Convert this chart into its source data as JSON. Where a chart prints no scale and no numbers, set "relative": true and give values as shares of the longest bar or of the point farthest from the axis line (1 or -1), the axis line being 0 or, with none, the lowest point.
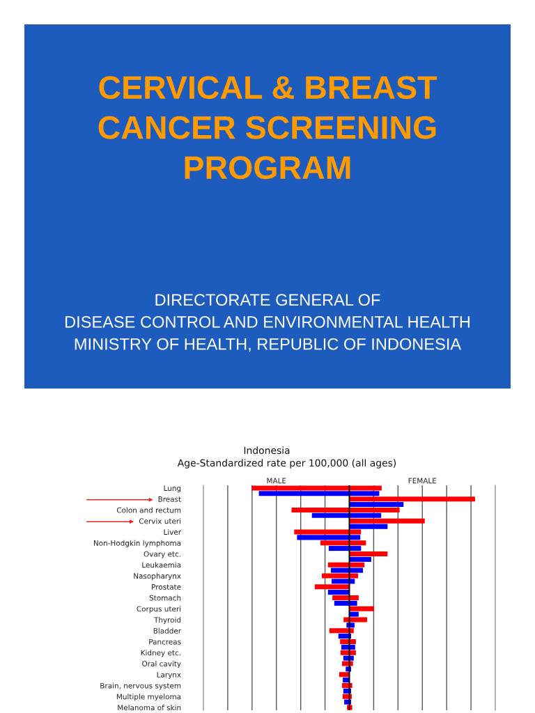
{
  "chart_data": [
    {
      "type": "other",
      "title": "CERVICAL & BREAST\nCANCER SCREENING\nPROGRAM",
      "subtitle": "DIRECTORATE GENERAL OF\nDISEASE CONTROL AND ENVIRONMENTAL HEALTH\nMINISTRY OF HEALTH, REPUBLIC OF INDONESIA"
    },
    {
      "type": "bar",
      "orientation": "horizontal",
      "stacked": true,
      "relative": true,
      "title": "Indonesia",
      "subtitle": "Age-Standardized rate per 100,000 (all ages)",
      "categories": [
        "Lung",
        null,
        "Breast",
        null,
        "Colon and rectum",
        null,
        "Cervix uteri",
        null,
        "Liver",
        null,
        "Non-Hodgkin lymphoma",
        null,
        "Ovary etc.",
        null,
        "Leukaemia",
        null,
        "Nasopharynx",
        null,
        "Prostate",
        null,
        "Stomach",
        null,
        "Corpus uteri",
        null,
        "Thyroid",
        null,
        "Bladder",
        null,
        "Pancreas",
        null,
        "Kidney etc.",
        null,
        "Oral cavity",
        null,
        "Larynx",
        null,
        "Brain, nervous system",
        null,
        "Multiple myeloma",
        null,
        "Melanoma of skin"
      ],
      "series": [
        {
          "name": "MALE",
          "colors": [
            "#ff0000",
            "#0000ff",
            "#ff0000",
            "#0000ff",
            "#ff0000",
            "#0000ff",
            "#ff0000",
            "#0000ff",
            "#ff0000",
            "#0000ff",
            "#ff0000",
            "#0000ff",
            "#ff0000",
            "#0000ff",
            "#ff0000",
            "#0000ff",
            "#ff0000",
            "#0000ff",
            "#ff0000",
            "#0000ff",
            "#ff0000",
            "#0000ff",
            "#ff0000",
            "#0000ff",
            "#ff0000",
            "#0000ff",
            "#ff0000",
            "#0000ff",
            "#ff0000",
            "#0000ff",
            "#ff0000",
            "#0000ff",
            "#ff0000",
            "#0000ff",
            "#ff0000",
            "#0000ff",
            "#ff0000",
            "#0000ff",
            "#ff0000",
            "#0000ff",
            "#ff0000"
          ],
          "values": [
            -0.776,
            -0.72,
            null,
            null,
            -0.46,
            -0.298,
            null,
            null,
            -0.439,
            -0.416,
            -0.23,
            -0.164,
            null,
            null,
            -0.17,
            -0.147,
            -0.219,
            -0.141,
            -0.275,
            -0.17,
            -0.135,
            -0.12,
            null,
            null,
            -0.046,
            -0.023,
            -0.159,
            -0.087,
            -0.074,
            -0.064,
            -0.07,
            -0.048,
            -0.058,
            -0.029,
            -0.081,
            -0.052,
            -0.058,
            -0.048,
            -0.054,
            -0.041,
            -0.019
          ]
        },
        {
          "name": "FEMALE",
          "colors": [
            "#ff0000",
            "#0000ff",
            "#ff0000",
            "#0000ff",
            "#ff0000",
            "#0000ff",
            "#ff0000",
            "#0000ff",
            "#ff0000",
            "#0000ff",
            "#ff0000",
            "#0000ff",
            "#ff0000",
            "#0000ff",
            "#ff0000",
            "#0000ff",
            "#ff0000",
            "#0000ff",
            "#ff0000",
            "#0000ff",
            "#ff0000",
            "#0000ff",
            "#ff0000",
            "#0000ff",
            "#ff0000",
            "#0000ff",
            "#ff0000",
            "#0000ff",
            "#ff0000",
            "#0000ff",
            "#ff0000",
            "#0000ff",
            "#ff0000",
            "#0000ff",
            "#ff0000",
            "#0000ff",
            "#ff0000",
            "#0000ff",
            "#ff0000",
            "#0000ff",
            "#ff0000"
          ],
          "values": [
            0.257,
            0.238,
            1.0,
            0.431,
            0.4,
            0.253,
            0.6,
            0.304,
            0.093,
            0.087,
            0.132,
            0.093,
            0.304,
            0.174,
            0.12,
            0.108,
            0.07,
            0.043,
            null,
            null,
            0.074,
            0.062,
            0.197,
            0.074,
            0.141,
            0.041,
            0.035,
            0.014,
            0.052,
            0.046,
            0.052,
            0.035,
            0.029,
            0.014,
            null,
            null,
            0.023,
            0.014,
            0.019,
            0.014,
            0.023
          ]
        }
      ],
      "grid": "x",
      "tick_labels": "y"
    }
  ]
}
